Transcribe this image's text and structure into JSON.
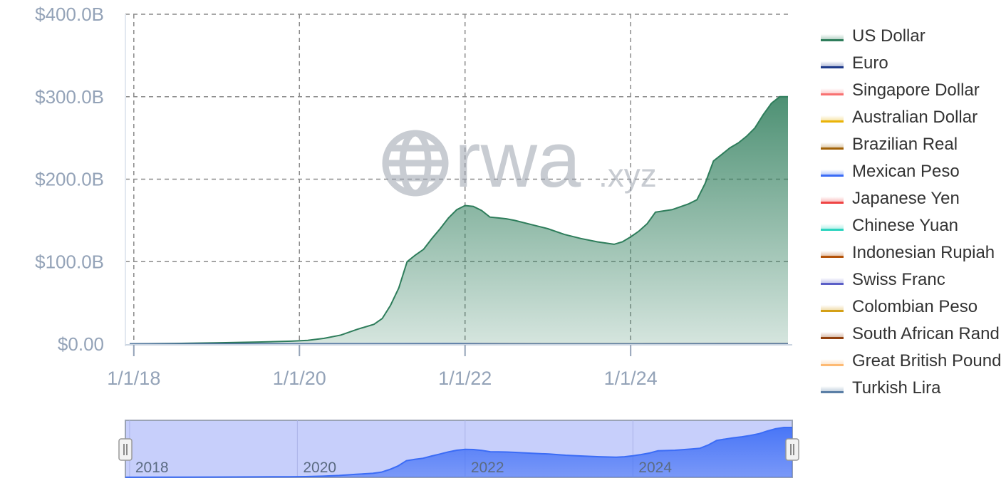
{
  "chart_data": {
    "type": "area",
    "watermark": {
      "main": "rwa",
      "suffix": ".xyz"
    },
    "y_axis": {
      "ticks": [
        {
          "value": 0,
          "label": "$0.00"
        },
        {
          "value": 100,
          "label": "$100.0B"
        },
        {
          "value": 200,
          "label": "$200.0B"
        },
        {
          "value": 300,
          "label": "$300.0B"
        },
        {
          "value": 400,
          "label": "$400.0B"
        }
      ],
      "range": [
        0,
        400
      ],
      "unit": "billions USD"
    },
    "x_axis": {
      "range": [
        2017.95,
        2025.9
      ],
      "ticks": [
        {
          "value": 2018,
          "label": "1/1/18"
        },
        {
          "value": 2020,
          "label": "1/1/20"
        },
        {
          "value": 2022,
          "label": "1/1/22"
        },
        {
          "value": 2024,
          "label": "1/1/24"
        }
      ]
    },
    "grid": true,
    "legend_position": "right",
    "series": [
      {
        "name": "US Dollar",
        "color": "#2e7d5b",
        "x": [
          2017.95,
          2018.5,
          2019.0,
          2019.5,
          2019.9,
          2020.1,
          2020.3,
          2020.5,
          2020.7,
          2020.9,
          2021.0,
          2021.1,
          2021.2,
          2021.3,
          2021.4,
          2021.5,
          2021.6,
          2021.7,
          2021.8,
          2021.9,
          2022.0,
          2022.1,
          2022.2,
          2022.3,
          2022.4,
          2022.5,
          2022.6,
          2022.8,
          2023.0,
          2023.2,
          2023.4,
          2023.6,
          2023.8,
          2023.9,
          2024.0,
          2024.1,
          2024.2,
          2024.3,
          2024.5,
          2024.7,
          2024.8,
          2024.9,
          2025.0,
          2025.1,
          2025.2,
          2025.3,
          2025.4,
          2025.5,
          2025.6,
          2025.7,
          2025.8,
          2025.9
        ],
        "values": [
          0.3,
          0.8,
          1.5,
          2.5,
          3.5,
          4.5,
          7,
          11,
          18,
          24,
          31,
          47,
          68,
          100,
          108,
          115,
          128,
          140,
          153,
          163,
          168,
          167,
          162,
          154,
          153,
          152,
          150,
          145,
          140,
          133,
          128,
          124,
          121,
          124,
          130,
          137,
          146,
          160,
          163,
          170,
          175,
          195,
          222,
          230,
          238,
          244,
          252,
          262,
          278,
          292,
          300,
          300
        ]
      },
      {
        "name": "Euro",
        "color": "#1e3a8a",
        "x": [
          2017.95,
          2025.9
        ],
        "values": [
          0.3,
          0.5
        ]
      },
      {
        "name": "Singapore Dollar",
        "color": "#f87171",
        "x": [
          2017.95,
          2025.9
        ],
        "values": [
          0,
          0.1
        ]
      },
      {
        "name": "Australian Dollar",
        "color": "#eab308",
        "x": [
          2017.95,
          2025.9
        ],
        "values": [
          0,
          0.1
        ]
      },
      {
        "name": "Brazilian Real",
        "color": "#a16207",
        "x": [
          2017.95,
          2025.9
        ],
        "values": [
          0,
          0.05
        ]
      },
      {
        "name": "Mexican Peso",
        "color": "#3b6cf6",
        "x": [
          2017.95,
          2025.9
        ],
        "values": [
          0,
          0.05
        ]
      },
      {
        "name": "Japanese Yen",
        "color": "#ef4444",
        "x": [
          2017.95,
          2025.9
        ],
        "values": [
          0,
          0.05
        ]
      },
      {
        "name": "Chinese Yuan",
        "color": "#2dd4bf",
        "x": [
          2017.95,
          2025.9
        ],
        "values": [
          0,
          0.05
        ]
      },
      {
        "name": "Indonesian Rupiah",
        "color": "#b45309",
        "x": [
          2017.95,
          2025.9
        ],
        "values": [
          0,
          0.02
        ]
      },
      {
        "name": "Swiss Franc",
        "color": "#5b5fc7",
        "x": [
          2017.95,
          2025.9
        ],
        "values": [
          0,
          0.02
        ]
      },
      {
        "name": "Colombian Peso",
        "color": "#d4a017",
        "x": [
          2017.95,
          2025.9
        ],
        "values": [
          0,
          0.02
        ]
      },
      {
        "name": "South African Rand",
        "color": "#92400e",
        "x": [
          2017.95,
          2025.9
        ],
        "values": [
          0,
          0.02
        ]
      },
      {
        "name": "Great British Pound",
        "color": "#fdba74",
        "x": [
          2017.95,
          2025.9
        ],
        "values": [
          0,
          0.02
        ]
      },
      {
        "name": "Turkish Lira",
        "color": "#5b7fa6",
        "x": [
          2017.95,
          2025.9
        ],
        "values": [
          0,
          0.02
        ]
      }
    ],
    "navigator": {
      "ticks": [
        {
          "value": 2018,
          "label": "2018"
        },
        {
          "value": 2020,
          "label": "2020"
        },
        {
          "value": 2022,
          "label": "2022"
        },
        {
          "value": 2024,
          "label": "2024"
        }
      ],
      "selection": [
        2017.95,
        2025.9
      ],
      "color": "#3b6cf6"
    }
  }
}
